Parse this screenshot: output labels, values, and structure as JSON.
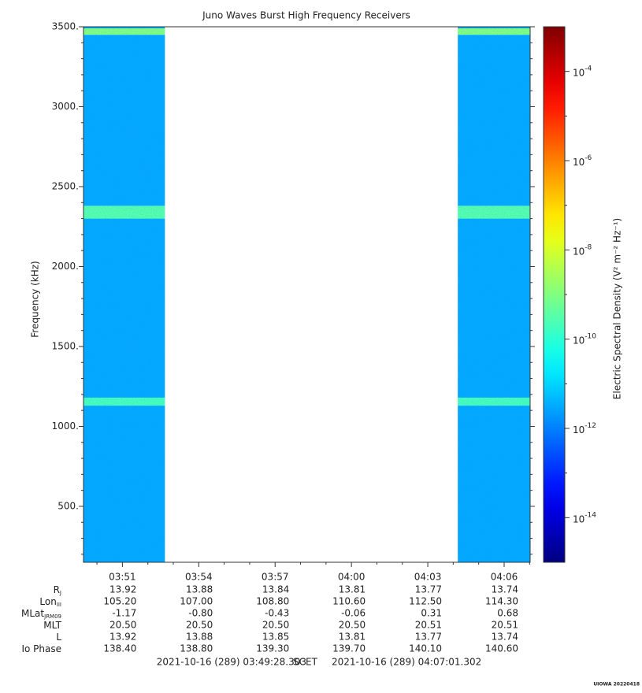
{
  "chart_data": {
    "type": "spectrogram",
    "title": "Juno Waves Burst High Frequency Receivers",
    "ylabel": "Frequency (kHz)",
    "colorbar_label": "Electric Spectral Density (V² m⁻² Hz⁻¹)",
    "xlim": [
      229.4717,
      247.0217
    ],
    "xticks": [
      {
        "value": 231,
        "label": "03:51"
      },
      {
        "value": 234,
        "label": "03:54"
      },
      {
        "value": 237,
        "label": "03:57"
      },
      {
        "value": 240,
        "label": "04:00"
      },
      {
        "value": 243,
        "label": "04:03"
      },
      {
        "value": 246,
        "label": "04:06"
      }
    ],
    "x_minor_ticks": [
      230,
      232,
      233,
      235,
      236,
      238,
      239,
      241,
      242,
      244,
      245,
      247
    ],
    "ylim": [
      150,
      3500
    ],
    "yticks": [
      {
        "value": 500,
        "label": "500."
      },
      {
        "value": 1000,
        "label": "1000."
      },
      {
        "value": 1500,
        "label": "1500."
      },
      {
        "value": 2000,
        "label": "2000."
      },
      {
        "value": 2500,
        "label": "2500."
      },
      {
        "value": 3000,
        "label": "3000."
      },
      {
        "value": 3500,
        "label": "3500."
      }
    ],
    "y_minor_ticks": [
      200,
      300,
      400,
      600,
      700,
      800,
      900,
      1100,
      1200,
      1300,
      1400,
      1600,
      1700,
      1800,
      1900,
      2100,
      2200,
      2300,
      2400,
      2600,
      2700,
      2800,
      2900,
      3100,
      3200,
      3300,
      3400
    ],
    "segments": [
      [
        229.4717,
        232.67
      ],
      [
        244.18,
        247.0217
      ]
    ],
    "frequency_bins": [
      150,
      1130,
      1180,
      2300,
      2380,
      3450,
      3490,
      3500
    ],
    "density": [
      3e-12,
      2e-10,
      3e-12,
      3e-10,
      3e-12,
      1e-09,
      3e-12
    ],
    "zlim": [
      1e-15,
      0.001
    ],
    "log_z": true,
    "zticks": [
      {
        "value": 1e-14,
        "label": "10",
        "exponent": "-14"
      },
      {
        "value": 1e-12,
        "label": "10",
        "exponent": "-12"
      },
      {
        "value": 1e-10,
        "label": "10",
        "exponent": "-10"
      },
      {
        "value": 1e-08,
        "label": "10",
        "exponent": "-8"
      },
      {
        "value": 1e-06,
        "label": "10",
        "exponent": "-6"
      },
      {
        "value": 0.0001,
        "label": "10",
        "exponent": "-4"
      }
    ],
    "z_minor_ticks": [
      1e-13,
      1e-11,
      1e-09,
      1e-07,
      1e-05
    ],
    "ephemeris": [
      {
        "label": "R",
        "subscript": "J",
        "values": [
          "13.92",
          "13.88",
          "13.84",
          "13.81",
          "13.77",
          "13.74"
        ]
      },
      {
        "label": "Lon",
        "subscript": "III",
        "values": [
          "105.20",
          "107.00",
          "108.80",
          "110.60",
          "112.50",
          "114.30"
        ]
      },
      {
        "label": "MLat",
        "subscript": "JRM09",
        "values": [
          "-1.17",
          "-0.80",
          "-0.43",
          "-0.06",
          "0.31",
          "0.68"
        ]
      },
      {
        "label": "MLT",
        "values": [
          "20.50",
          "20.50",
          "20.50",
          "20.50",
          "20.51",
          "20.51"
        ]
      },
      {
        "label": "L",
        "values": [
          "13.92",
          "13.88",
          "13.85",
          "13.81",
          "13.77",
          "13.74"
        ]
      },
      {
        "label": "Io Phase",
        "values": [
          "138.40",
          "138.80",
          "139.30",
          "139.70",
          "140.10",
          "140.60"
        ]
      }
    ],
    "time_range": {
      "start": "2021-10-16 (289) 03:49:28.303",
      "label": "SCET",
      "end": "2021-10-16 (289) 04:07:01.302"
    },
    "credit": "UIOWA 20220418"
  }
}
